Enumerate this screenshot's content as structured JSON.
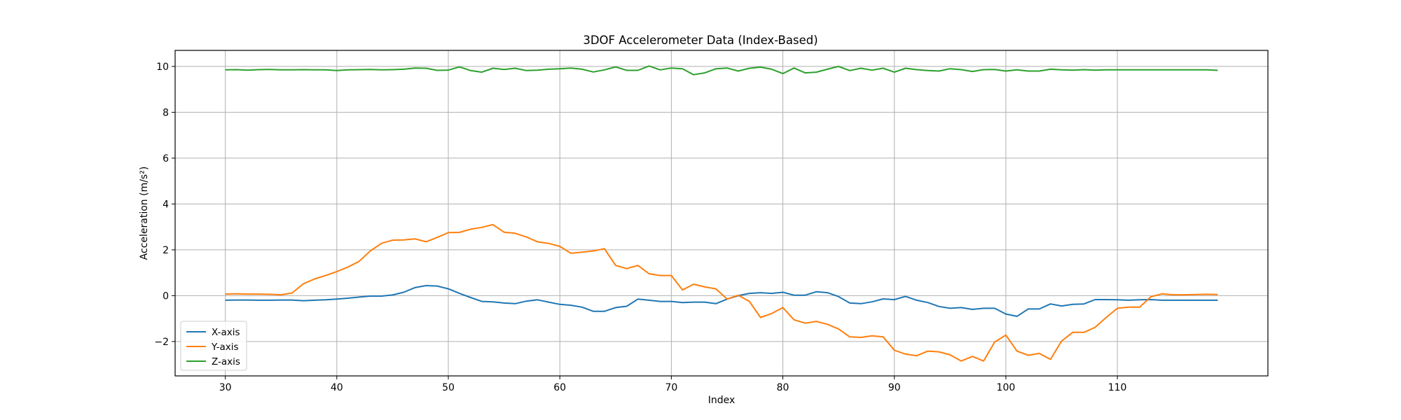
{
  "chart_data": {
    "type": "line",
    "title": "3DOF Accelerometer Data (Index-Based)",
    "xlabel": "Index",
    "ylabel": "Acceleration (m/s²)",
    "xlim": [
      25.5,
      123.5
    ],
    "ylim": [
      -3.5,
      10.7
    ],
    "xticks": [
      30,
      40,
      50,
      60,
      70,
      80,
      90,
      100,
      110
    ],
    "yticks": [
      -2,
      0,
      2,
      4,
      6,
      8,
      10
    ],
    "grid": true,
    "legend_position": "lower-left",
    "x": [
      30,
      31,
      32,
      33,
      34,
      35,
      36,
      37,
      38,
      39,
      40,
      41,
      42,
      43,
      44,
      45,
      46,
      47,
      48,
      49,
      50,
      51,
      52,
      53,
      54,
      55,
      56,
      57,
      58,
      59,
      60,
      61,
      62,
      63,
      64,
      65,
      66,
      67,
      68,
      69,
      70,
      71,
      72,
      73,
      74,
      75,
      76,
      77,
      78,
      79,
      80,
      81,
      82,
      83,
      84,
      85,
      86,
      87,
      88,
      89,
      90,
      91,
      92,
      93,
      94,
      95,
      96,
      97,
      98,
      99,
      100,
      101,
      102,
      103,
      104,
      105,
      106,
      107,
      108,
      109,
      110,
      111,
      112,
      113,
      114,
      115,
      116,
      117,
      118,
      119
    ],
    "series": [
      {
        "name": "X-axis",
        "color": "#1f77b4",
        "values": [
          -0.2,
          -0.19,
          -0.19,
          -0.2,
          -0.2,
          -0.19,
          -0.19,
          -0.22,
          -0.2,
          -0.18,
          -0.15,
          -0.11,
          -0.06,
          -0.02,
          -0.02,
          0.03,
          0.15,
          0.35,
          0.44,
          0.42,
          0.3,
          0.1,
          -0.08,
          -0.25,
          -0.27,
          -0.32,
          -0.35,
          -0.24,
          -0.18,
          -0.28,
          -0.38,
          -0.42,
          -0.5,
          -0.68,
          -0.68,
          -0.52,
          -0.46,
          -0.15,
          -0.2,
          -0.25,
          -0.25,
          -0.3,
          -0.28,
          -0.28,
          -0.35,
          -0.15,
          0.0,
          0.1,
          0.13,
          0.1,
          0.15,
          0.02,
          0.02,
          0.17,
          0.13,
          -0.04,
          -0.32,
          -0.35,
          -0.27,
          -0.14,
          -0.17,
          -0.03,
          -0.2,
          -0.3,
          -0.47,
          -0.55,
          -0.52,
          -0.6,
          -0.55,
          -0.55,
          -0.8,
          -0.9,
          -0.58,
          -0.58,
          -0.36,
          -0.45,
          -0.38,
          -0.36,
          -0.17,
          -0.17,
          -0.18,
          -0.2,
          -0.18,
          -0.17,
          -0.2,
          -0.2,
          -0.2,
          -0.2,
          -0.2,
          -0.2
        ]
      },
      {
        "name": "Y-axis",
        "color": "#ff7f0e",
        "values": [
          0.07,
          0.08,
          0.07,
          0.07,
          0.06,
          0.04,
          0.12,
          0.52,
          0.73,
          0.88,
          1.05,
          1.25,
          1.5,
          1.95,
          2.28,
          2.42,
          2.43,
          2.48,
          2.35,
          2.54,
          2.75,
          2.76,
          2.9,
          2.98,
          3.1,
          2.77,
          2.72,
          2.56,
          2.35,
          2.28,
          2.15,
          1.85,
          1.9,
          1.95,
          2.05,
          1.32,
          1.18,
          1.32,
          0.96,
          0.88,
          0.88,
          0.25,
          0.5,
          0.38,
          0.3,
          -0.15,
          0.02,
          -0.25,
          -0.95,
          -0.78,
          -0.52,
          -1.05,
          -1.2,
          -1.12,
          -1.25,
          -1.45,
          -1.8,
          -1.82,
          -1.75,
          -1.8,
          -2.38,
          -2.55,
          -2.62,
          -2.42,
          -2.45,
          -2.58,
          -2.85,
          -2.65,
          -2.85,
          -2.02,
          -1.72,
          -2.42,
          -2.6,
          -2.52,
          -2.78,
          -1.98,
          -1.6,
          -1.6,
          -1.38,
          -0.95,
          -0.55,
          -0.5,
          -0.5,
          -0.05,
          0.08,
          0.04,
          0.04,
          0.05,
          0.06,
          0.05
        ]
      },
      {
        "name": "Z-axis",
        "color": "#2ca02c",
        "values": [
          9.85,
          9.86,
          9.84,
          9.86,
          9.87,
          9.85,
          9.85,
          9.86,
          9.85,
          9.85,
          9.82,
          9.85,
          9.86,
          9.87,
          9.85,
          9.86,
          9.88,
          9.93,
          9.92,
          9.83,
          9.84,
          9.98,
          9.82,
          9.75,
          9.92,
          9.87,
          9.92,
          9.82,
          9.84,
          9.88,
          9.9,
          9.93,
          9.88,
          9.76,
          9.85,
          9.98,
          9.83,
          9.83,
          10.02,
          9.85,
          9.93,
          9.9,
          9.64,
          9.72,
          9.9,
          9.93,
          9.8,
          9.92,
          9.97,
          9.88,
          9.69,
          9.93,
          9.72,
          9.75,
          9.88,
          10.0,
          9.82,
          9.92,
          9.84,
          9.92,
          9.75,
          9.92,
          9.86,
          9.82,
          9.8,
          9.9,
          9.86,
          9.78,
          9.86,
          9.87,
          9.8,
          9.85,
          9.8,
          9.8,
          9.88,
          9.85,
          9.84,
          9.86,
          9.84,
          9.85,
          9.85,
          9.85,
          9.85,
          9.85,
          9.85,
          9.85,
          9.85,
          9.85,
          9.85,
          9.83
        ]
      }
    ]
  }
}
